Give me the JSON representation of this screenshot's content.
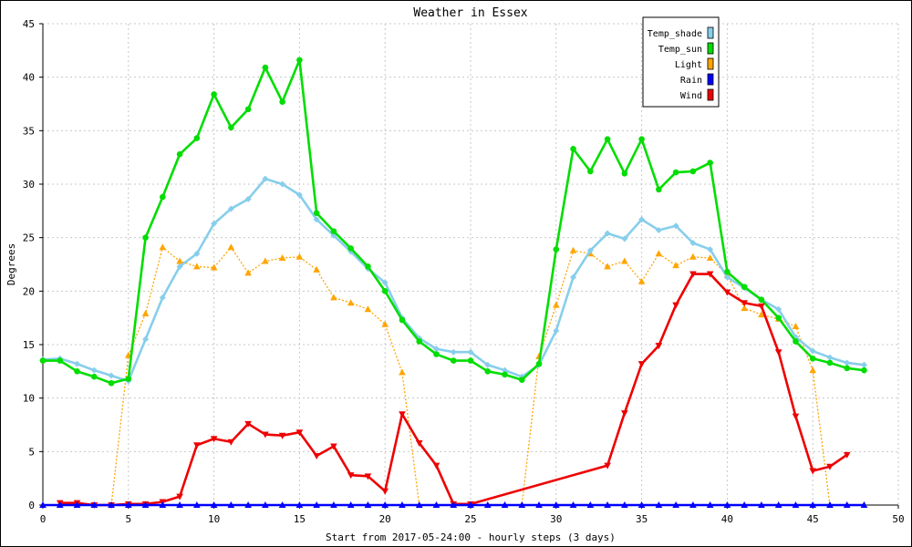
{
  "chart_data": {
    "type": "line",
    "title": "Weather in Essex",
    "xlabel": "Start from 2017-05-24:00 - hourly steps (3 days)",
    "ylabel": "Degrees",
    "xlim": [
      0,
      50
    ],
    "ylim": [
      0,
      45
    ],
    "xticks": [
      0,
      5,
      10,
      15,
      20,
      25,
      30,
      35,
      40,
      45,
      50
    ],
    "yticks": [
      0,
      5,
      10,
      15,
      20,
      25,
      30,
      35,
      40,
      45
    ],
    "grid": true,
    "legend_position": "top-right",
    "series": [
      {
        "name": "Temp_shade",
        "color": "#87CEEB",
        "marker": "diamond",
        "dashed": false,
        "x": [
          0,
          1,
          2,
          3,
          4,
          5,
          6,
          7,
          8,
          9,
          10,
          11,
          12,
          13,
          14,
          15,
          16,
          17,
          18,
          19,
          20,
          21,
          22,
          23,
          24,
          25,
          26,
          27,
          28,
          29,
          30,
          31,
          32,
          33,
          34,
          35,
          36,
          37,
          38,
          39,
          40,
          41,
          42,
          43,
          44,
          45,
          46,
          47,
          48
        ],
        "y": [
          13.6,
          13.7,
          13.2,
          12.6,
          12.1,
          11.6,
          15.5,
          19.4,
          22.3,
          23.5,
          26.3,
          27.7,
          28.6,
          30.5,
          30.0,
          29.0,
          26.7,
          25.2,
          23.7,
          22.1,
          20.8,
          17.5,
          15.6,
          14.6,
          14.3,
          14.3,
          13.1,
          12.6,
          12.0,
          13.1,
          16.3,
          21.3,
          23.8,
          25.4,
          24.9,
          26.7,
          25.7,
          26.1,
          24.5,
          23.9,
          21.3,
          20.3,
          19.2,
          18.3,
          15.7,
          14.4,
          13.8,
          13.3,
          13.1
        ]
      },
      {
        "name": "Temp_sun",
        "color": "#00DD00",
        "marker": "circle",
        "dashed": false,
        "x": [
          0,
          1,
          2,
          3,
          4,
          5,
          6,
          7,
          8,
          9,
          10,
          11,
          12,
          13,
          14,
          15,
          16,
          17,
          18,
          19,
          20,
          21,
          22,
          23,
          24,
          25,
          26,
          27,
          28,
          29,
          30,
          31,
          32,
          33,
          34,
          35,
          36,
          37,
          38,
          39,
          40,
          41,
          42,
          43,
          44,
          45,
          46,
          47,
          48
        ],
        "y": [
          13.5,
          13.5,
          12.5,
          12.0,
          11.4,
          11.8,
          25.0,
          28.8,
          32.8,
          34.3,
          38.4,
          35.3,
          37.0,
          40.9,
          37.7,
          41.6,
          27.3,
          25.6,
          24.0,
          22.3,
          20.0,
          17.3,
          15.3,
          14.1,
          13.5,
          13.5,
          12.5,
          12.2,
          11.7,
          13.2,
          23.9,
          33.3,
          31.2,
          34.2,
          31.0,
          34.2,
          29.5,
          31.1,
          31.2,
          32.0,
          21.8,
          20.4,
          19.2,
          17.5,
          15.3,
          13.7,
          13.3,
          12.8,
          12.6
        ]
      },
      {
        "name": "Light",
        "color": "#FFA500",
        "marker": "triangle-up",
        "dashed": true,
        "x": [
          0,
          1,
          2,
          3,
          4,
          5,
          6,
          7,
          8,
          9,
          10,
          11,
          12,
          13,
          14,
          15,
          16,
          17,
          18,
          19,
          20,
          21,
          22,
          23,
          24,
          25,
          26,
          27,
          28,
          29,
          30,
          31,
          32,
          33,
          34,
          35,
          36,
          37,
          38,
          39,
          40,
          41,
          42,
          43,
          44,
          45,
          46,
          47,
          48
        ],
        "y": [
          0,
          0,
          0,
          0,
          0,
          14.0,
          17.9,
          24.1,
          22.8,
          22.3,
          22.2,
          24.1,
          21.7,
          22.8,
          23.1,
          23.2,
          22.0,
          19.4,
          18.9,
          18.3,
          16.9,
          12.4,
          0,
          0,
          0,
          0,
          0,
          0,
          0,
          13.9,
          18.7,
          23.8,
          23.5,
          22.3,
          22.8,
          20.9,
          23.5,
          22.4,
          23.2,
          23.1,
          21.5,
          18.4,
          17.8,
          17.4,
          16.7,
          12.6,
          0,
          0,
          0
        ]
      },
      {
        "name": "Rain",
        "color": "#0000FF",
        "marker": "triangle-up",
        "dashed": false,
        "x": [
          0,
          1,
          2,
          3,
          4,
          5,
          6,
          7,
          8,
          9,
          10,
          11,
          12,
          13,
          14,
          15,
          16,
          17,
          18,
          19,
          20,
          21,
          22,
          23,
          24,
          25,
          26,
          27,
          28,
          29,
          30,
          31,
          32,
          33,
          34,
          35,
          36,
          37,
          38,
          39,
          40,
          41,
          42,
          43,
          44,
          45,
          46,
          47,
          48
        ],
        "y": [
          0,
          0,
          0,
          0,
          0,
          0,
          0,
          0,
          0,
          0,
          0,
          0,
          0,
          0,
          0,
          0,
          0,
          0,
          0,
          0,
          0,
          0,
          0,
          0,
          0,
          0,
          0,
          0,
          0,
          0,
          0,
          0,
          0,
          0,
          0,
          0,
          0,
          0,
          0,
          0,
          0,
          0,
          0,
          0,
          0,
          0,
          0,
          0,
          0
        ]
      },
      {
        "name": "Wind",
        "color": "#EE0000",
        "marker": "triangle-down",
        "dashed": false,
        "x": [
          1,
          2,
          3,
          4,
          5,
          6,
          7,
          8,
          9,
          10,
          11,
          12,
          13,
          14,
          15,
          16,
          17,
          18,
          19,
          20,
          21,
          22,
          23,
          24,
          25,
          33,
          34,
          35,
          36,
          37,
          38,
          39,
          40,
          41,
          42,
          43,
          44,
          45,
          46,
          47
        ],
        "y": [
          0.2,
          0.2,
          0.0,
          0.0,
          0.1,
          0.1,
          0.3,
          0.8,
          5.6,
          6.2,
          5.9,
          7.6,
          6.6,
          6.5,
          6.8,
          4.6,
          5.5,
          2.8,
          2.7,
          1.3,
          8.5,
          5.8,
          3.7,
          0.1,
          0.1,
          3.7,
          8.6,
          13.2,
          14.9,
          18.7,
          21.6,
          21.6,
          19.9,
          18.9,
          18.6,
          14.3,
          8.3,
          3.2,
          3.6,
          4.7
        ]
      }
    ]
  }
}
